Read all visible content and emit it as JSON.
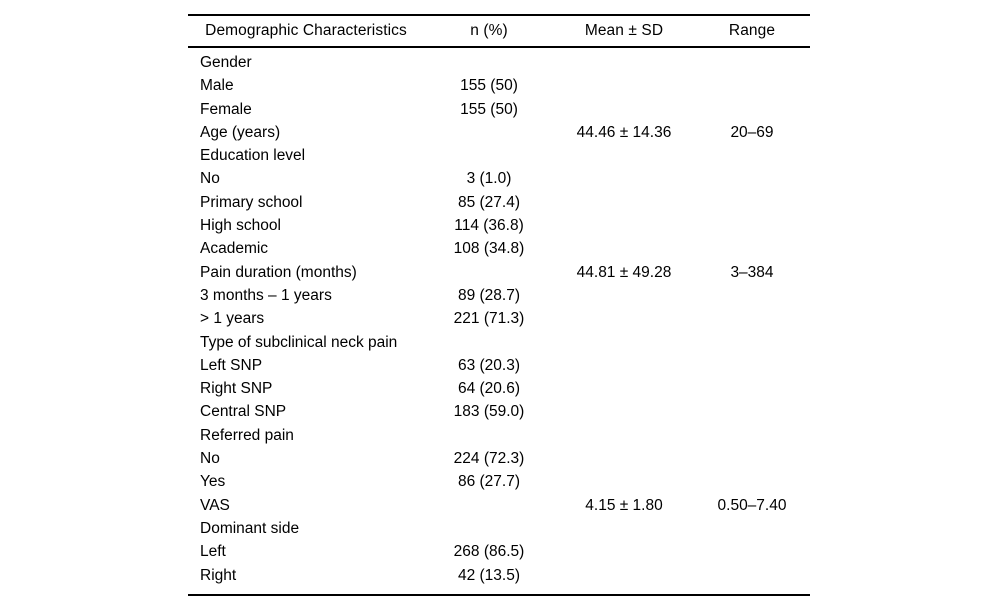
{
  "table": {
    "columns": {
      "characteristics": "Demographic Characteristics",
      "n_percent": "n (%)",
      "mean_sd": "Mean ± SD",
      "range": "Range"
    },
    "rows": [
      {
        "label": "Gender",
        "n": "",
        "mean_sd": "",
        "range": ""
      },
      {
        "label": "Male",
        "n": "155 (50)",
        "mean_sd": "",
        "range": ""
      },
      {
        "label": "Female",
        "n": "155 (50)",
        "mean_sd": "",
        "range": ""
      },
      {
        "label": "Age (years)",
        "n": "",
        "mean_sd": "44.46 ± 14.36",
        "range": "20–69"
      },
      {
        "label": "Education level",
        "n": "",
        "mean_sd": "",
        "range": ""
      },
      {
        "label": "No",
        "n": "3 (1.0)",
        "mean_sd": "",
        "range": ""
      },
      {
        "label": "Primary school",
        "n": "85 (27.4)",
        "mean_sd": "",
        "range": ""
      },
      {
        "label": "High school",
        "n": "114 (36.8)",
        "mean_sd": "",
        "range": ""
      },
      {
        "label": "Academic",
        "n": "108 (34.8)",
        "mean_sd": "",
        "range": ""
      },
      {
        "label": "Pain duration (months)",
        "n": "",
        "mean_sd": "44.81 ± 49.28",
        "range": "3–384"
      },
      {
        "label": "3 months – 1 years",
        "n": "89 (28.7)",
        "mean_sd": "",
        "range": ""
      },
      {
        "label": "> 1 years",
        "n": "221 (71.3)",
        "mean_sd": "",
        "range": ""
      },
      {
        "label": "Type of subclinical neck pain",
        "n": "",
        "mean_sd": "",
        "range": ""
      },
      {
        "label": "Left SNP",
        "n": "63 (20.3)",
        "mean_sd": "",
        "range": ""
      },
      {
        "label": "Right SNP",
        "n": "64 (20.6)",
        "mean_sd": "",
        "range": ""
      },
      {
        "label": "Central SNP",
        "n": "183 (59.0)",
        "mean_sd": "",
        "range": ""
      },
      {
        "label": "Referred pain",
        "n": "",
        "mean_sd": "",
        "range": ""
      },
      {
        "label": "No",
        "n": "224 (72.3)",
        "mean_sd": "",
        "range": ""
      },
      {
        "label": "Yes",
        "n": "86 (27.7)",
        "mean_sd": "",
        "range": ""
      },
      {
        "label": "VAS",
        "n": "",
        "mean_sd": "4.15 ± 1.80",
        "range": "0.50–7.40"
      },
      {
        "label": "Dominant side",
        "n": "",
        "mean_sd": "",
        "range": ""
      },
      {
        "label": "Left",
        "n": "268 (86.5)",
        "mean_sd": "",
        "range": ""
      },
      {
        "label": "Right",
        "n": "42 (13.5)",
        "mean_sd": "",
        "range": ""
      }
    ]
  }
}
